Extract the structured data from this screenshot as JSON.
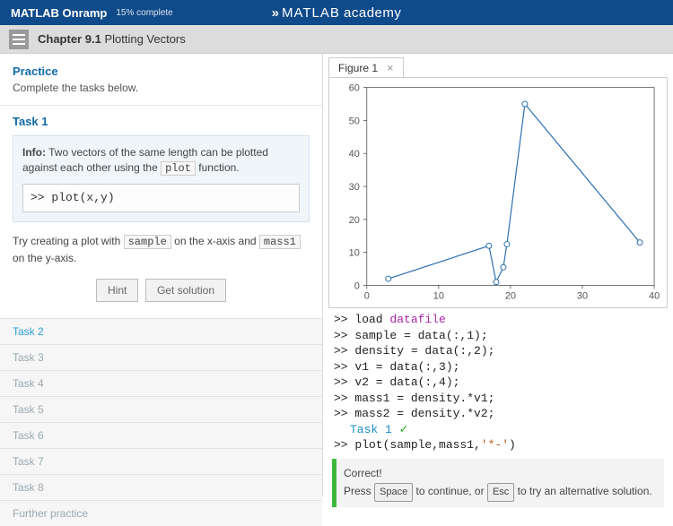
{
  "header": {
    "course": "MATLAB Onramp",
    "progress": "15% complete",
    "brand_left": "MATLAB",
    "brand_right": "academy"
  },
  "chapter": {
    "prefix": "Chapter 9.1",
    "title": "Plotting Vectors"
  },
  "left": {
    "practice_label": "Practice",
    "practice_sub": "Complete the tasks below.",
    "task1": {
      "title": "Task 1",
      "info_prefix": "Info:",
      "info_text_1": " Two vectors of the same length can be plotted against each other using the ",
      "info_code": "plot",
      "info_text_2": " function.",
      "code_block": ">> plot(x,y)",
      "instr_1": "Try creating a plot with ",
      "instr_code1": "sample",
      "instr_2": " on the x-axis and ",
      "instr_code2": "mass1",
      "instr_3": " on the y-axis.",
      "hint_btn": "Hint",
      "solution_btn": "Get solution"
    },
    "tasks": [
      "Task 2",
      "Task 3",
      "Task 4",
      "Task 5",
      "Task 6",
      "Task 7",
      "Task 8",
      "Further practice"
    ]
  },
  "figure": {
    "tab_label": "Figure 1",
    "plot": {
      "type": "line",
      "x": [
        3,
        17,
        18,
        19,
        19.5,
        22,
        38
      ],
      "y": [
        2,
        12,
        1,
        5.5,
        12.5,
        55,
        13
      ],
      "line_color": "#2a6fb0",
      "line_width": 1.2,
      "marker": "circle",
      "marker_size": 3,
      "marker_color": "#2a6fb0",
      "xlim": [
        0,
        40
      ],
      "ylim": [
        0,
        60
      ],
      "xticks": [
        0,
        10,
        20,
        30,
        40
      ],
      "yticks": [
        0,
        10,
        20,
        30,
        40,
        50,
        60
      ],
      "background_color": "#ffffff",
      "axis_color": "#555555",
      "tick_fontsize": 11
    }
  },
  "console": {
    "lines": [
      {
        "prompt": ">> ",
        "pre": "load ",
        "kw": "datafile"
      },
      {
        "prompt": ">> ",
        "text": "sample = data(:,1);"
      },
      {
        "prompt": ">> ",
        "text": "density = data(:,2);"
      },
      {
        "prompt": ">> ",
        "text": "v1 = data(:,3);"
      },
      {
        "prompt": ">> ",
        "text": "v2 = data(:,4);"
      },
      {
        "prompt": ">> ",
        "text": "mass1 = density.*v1;"
      },
      {
        "prompt": ">> ",
        "text": "mass2 = density.*v2;"
      }
    ],
    "task_label": "Task 1",
    "plot_line_prompt": ">> ",
    "plot_line_pre": "plot(sample,mass1,",
    "plot_line_str": "'*-'",
    "plot_line_post": ")"
  },
  "correct": {
    "heading": "Correct!",
    "press": "Press ",
    "key1": "Space",
    "mid": " to continue, or ",
    "key2": "Esc",
    "tail": " to try an alternative solution."
  }
}
